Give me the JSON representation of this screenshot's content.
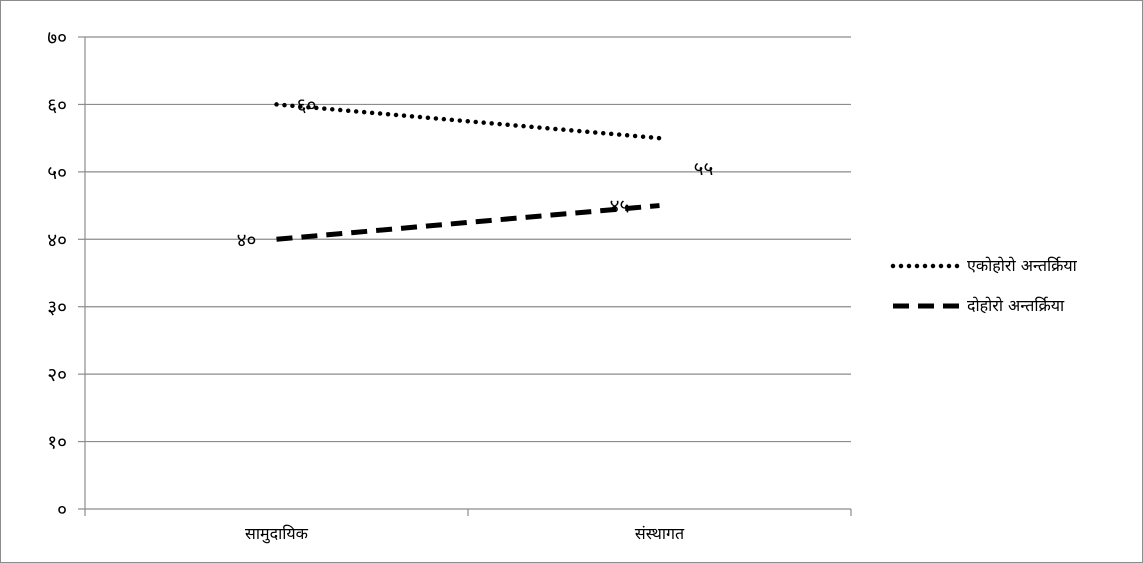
{
  "chart_data": {
    "type": "line",
    "categories": [
      "सामुदायिक",
      "संस्थागत"
    ],
    "ylim": [
      0,
      70
    ],
    "ytick_values": [
      0,
      10,
      20,
      30,
      40,
      50,
      60,
      70
    ],
    "ytick_labels": [
      "०",
      "१०",
      "२०",
      "३०",
      "४०",
      "५०",
      "६०",
      "७०"
    ],
    "grid": true,
    "legend_position": "right",
    "series": [
      {
        "name": "एकोहोरो अन्तर्क्रिया",
        "values": [
          60,
          55
        ],
        "value_labels": [
          "६०",
          "५५"
        ],
        "style": "dotted",
        "color": "#000000"
      },
      {
        "name": "दोहोरो अन्तर्क्रिया",
        "values": [
          40,
          45
        ],
        "value_labels": [
          "४०",
          "४५"
        ],
        "style": "dashed",
        "color": "#000000"
      }
    ]
  },
  "colors": {
    "grid": "#8c8c8c",
    "axis": "#8c8c8c",
    "frame": "#8c8c8c",
    "line": "#000000"
  }
}
